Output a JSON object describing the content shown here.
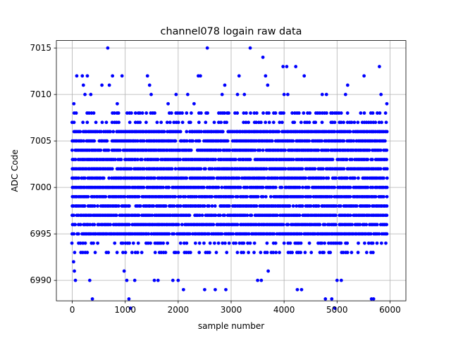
{
  "chart_data": {
    "type": "scatter",
    "title": "channel078 logain raw data",
    "xlabel": "sample number",
    "ylabel": "ADC Code",
    "xlim": [
      -300,
      6300
    ],
    "ylim": [
      6987.8,
      7015.8
    ],
    "xticks": [
      0,
      1000,
      2000,
      3000,
      4000,
      5000,
      6000
    ],
    "yticks": [
      6990,
      6995,
      7000,
      7005,
      7010,
      7015
    ],
    "xtick_labels": [
      "0",
      "1000",
      "2000",
      "3000",
      "4000",
      "5000",
      "6000"
    ],
    "ytick_labels": [
      "6990",
      "6995",
      "7000",
      "7005",
      "7010",
      "7015"
    ],
    "grid": true,
    "marker_color": "#0000ff",
    "n_samples": 5950,
    "dense_band": [
      6994,
      7008
    ],
    "series": [
      {
        "dense_levels": [
          6995,
          6996,
          6997,
          6998,
          6999,
          7000,
          7001,
          7002,
          7003,
          7004,
          7005,
          7006
        ],
        "sparse_levels": [
          6993,
          6994,
          7007,
          7008
        ],
        "outliers": [
          {
            "x": 25,
            "y": 6992
          },
          {
            "x": 40,
            "y": 6991
          },
          {
            "x": 60,
            "y": 6990
          },
          {
            "x": 30,
            "y": 7009
          },
          {
            "x": 85,
            "y": 7012
          },
          {
            "x": 190,
            "y": 7012
          },
          {
            "x": 210,
            "y": 7011
          },
          {
            "x": 240,
            "y": 7010
          },
          {
            "x": 285,
            "y": 7012
          },
          {
            "x": 330,
            "y": 6990
          },
          {
            "x": 350,
            "y": 7010
          },
          {
            "x": 380,
            "y": 6988
          },
          {
            "x": 560,
            "y": 7011
          },
          {
            "x": 670,
            "y": 7015
          },
          {
            "x": 700,
            "y": 7011
          },
          {
            "x": 760,
            "y": 7012
          },
          {
            "x": 850,
            "y": 7009
          },
          {
            "x": 940,
            "y": 7012
          },
          {
            "x": 980,
            "y": 6991
          },
          {
            "x": 1030,
            "y": 6990
          },
          {
            "x": 1070,
            "y": 6988
          },
          {
            "x": 1100,
            "y": 6987
          },
          {
            "x": 1180,
            "y": 6990
          },
          {
            "x": 1420,
            "y": 7012
          },
          {
            "x": 1460,
            "y": 7011
          },
          {
            "x": 1490,
            "y": 7010
          },
          {
            "x": 1550,
            "y": 6990
          },
          {
            "x": 1620,
            "y": 6990
          },
          {
            "x": 1810,
            "y": 7009
          },
          {
            "x": 1900,
            "y": 6990
          },
          {
            "x": 1960,
            "y": 7010
          },
          {
            "x": 2000,
            "y": 6990
          },
          {
            "x": 2100,
            "y": 6989
          },
          {
            "x": 2180,
            "y": 7010
          },
          {
            "x": 2300,
            "y": 7009
          },
          {
            "x": 2380,
            "y": 7012
          },
          {
            "x": 2420,
            "y": 7012
          },
          {
            "x": 2500,
            "y": 6989
          },
          {
            "x": 2550,
            "y": 7015
          },
          {
            "x": 2700,
            "y": 6989
          },
          {
            "x": 2830,
            "y": 7010
          },
          {
            "x": 2880,
            "y": 7011
          },
          {
            "x": 2900,
            "y": 6989
          },
          {
            "x": 3120,
            "y": 7010
          },
          {
            "x": 3150,
            "y": 7012
          },
          {
            "x": 3250,
            "y": 7010
          },
          {
            "x": 3360,
            "y": 7015
          },
          {
            "x": 3500,
            "y": 6990
          },
          {
            "x": 3570,
            "y": 6990
          },
          {
            "x": 3600,
            "y": 7014
          },
          {
            "x": 3650,
            "y": 7012
          },
          {
            "x": 3690,
            "y": 7011
          },
          {
            "x": 3700,
            "y": 6991
          },
          {
            "x": 3980,
            "y": 7013
          },
          {
            "x": 4000,
            "y": 7010
          },
          {
            "x": 4050,
            "y": 7013
          },
          {
            "x": 4070,
            "y": 7010
          },
          {
            "x": 4220,
            "y": 7013
          },
          {
            "x": 4250,
            "y": 6989
          },
          {
            "x": 4330,
            "y": 6989
          },
          {
            "x": 4380,
            "y": 7012
          },
          {
            "x": 4720,
            "y": 7010
          },
          {
            "x": 4780,
            "y": 6988
          },
          {
            "x": 4800,
            "y": 7010
          },
          {
            "x": 4900,
            "y": 6988
          },
          {
            "x": 4960,
            "y": 6987
          },
          {
            "x": 5000,
            "y": 6990
          },
          {
            "x": 5080,
            "y": 6990
          },
          {
            "x": 5160,
            "y": 7010
          },
          {
            "x": 5200,
            "y": 7011
          },
          {
            "x": 5510,
            "y": 7012
          },
          {
            "x": 5650,
            "y": 6988
          },
          {
            "x": 5690,
            "y": 6988
          },
          {
            "x": 5800,
            "y": 7013
          },
          {
            "x": 5830,
            "y": 7010
          },
          {
            "x": 5940,
            "y": 7009
          }
        ]
      }
    ]
  }
}
